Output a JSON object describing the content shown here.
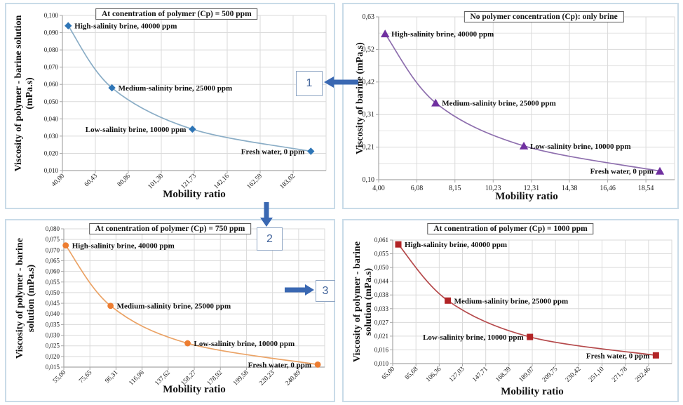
{
  "callouts": [
    {
      "label": "1"
    },
    {
      "label": "2"
    },
    {
      "label": "3"
    }
  ],
  "chart_data": [
    {
      "type": "line",
      "title": "At conentration of polymer (Cp) = 500 ppm",
      "xlabel": "Mobility ratio",
      "ylabel_lines": [
        "Viscosity of polymer - barine  solution",
        "(mPa.s)"
      ],
      "marker": "diamond",
      "marker_color": "#2E75B6",
      "line_color": "#8AADC6",
      "grid": true,
      "x_min": 40,
      "x_plot_max": 203.45,
      "y_min": 0.01,
      "y_max": 0.1,
      "y_tick_labels": [
        "0,100",
        "0,090",
        "0,080",
        "0,070",
        "0,060",
        "0,050",
        "0,040",
        "0,030",
        "0,020",
        "0,010"
      ],
      "x_ticks": [
        {
          "label": "40,00",
          "value": 40.0
        },
        {
          "label": "60,43",
          "value": 60.43
        },
        {
          "label": "80,86",
          "value": 80.86
        },
        {
          "label": "101,30",
          "value": 101.3
        },
        {
          "label": "121,73",
          "value": 121.73
        },
        {
          "label": "142,16",
          "value": 142.16
        },
        {
          "label": "162,59",
          "value": 162.59
        },
        {
          "label": "183,02",
          "value": 183.02
        }
      ],
      "points": [
        {
          "x": 43.6,
          "y": 0.094,
          "label": "High-salinity brine, 40000 ppm",
          "side": "right"
        },
        {
          "x": 70.7,
          "y": 0.058,
          "label": "Medium-salinity brine, 25000 ppm",
          "side": "right"
        },
        {
          "x": 120.6,
          "y": 0.034,
          "label": "Low-salinity brine, 10000 ppm",
          "side": "left"
        },
        {
          "x": 194.0,
          "y": 0.0212,
          "label": "Fresh water, 0 ppm",
          "side": "left"
        }
      ]
    },
    {
      "type": "line",
      "title": "No polymer concentration (Cp): only brine",
      "xlabel": "Mobility ratio",
      "ylabel_lines": [
        "Viscosity of barine (mPa.s)"
      ],
      "marker": "triangle",
      "marker_color": "#7030A0",
      "line_color": "#8E6FAE",
      "grid": true,
      "minor_y_grid": true,
      "x_min": 4.0,
      "x_plot_max": 20.1,
      "y_min": 0.1,
      "y_max": 0.63,
      "y_tick_labels": [
        "0,63",
        "0,52",
        "0,42",
        "0,31",
        "0,21",
        "0,10"
      ],
      "x_ticks": [
        {
          "label": "4,00",
          "value": 4.0
        },
        {
          "label": "6,08",
          "value": 6.08
        },
        {
          "label": "8,15",
          "value": 8.15
        },
        {
          "label": "10,23",
          "value": 10.23
        },
        {
          "label": "12,31",
          "value": 12.31
        },
        {
          "label": "14,38",
          "value": 14.38
        },
        {
          "label": "16,46",
          "value": 16.46
        },
        {
          "label": "18,54",
          "value": 18.54
        }
      ],
      "points": [
        {
          "x": 4.35,
          "y": 0.575,
          "label": "High-salinity brine, 40000 ppm",
          "side": "right"
        },
        {
          "x": 7.1,
          "y": 0.35,
          "label": "Medium-salinity brine, 25000 ppm",
          "side": "right"
        },
        {
          "x": 11.9,
          "y": 0.21,
          "label": "Low-salinity brine, 10000 ppm",
          "side": "right"
        },
        {
          "x": 19.3,
          "y": 0.128,
          "label": "Fresh water, 0 ppm",
          "side": "left"
        }
      ]
    },
    {
      "type": "line",
      "title": "At conentration of polymer (Cp) = 750 ppm",
      "xlabel": "Mobility ratio",
      "ylabel_lines": [
        "Viscosity of polymer - barine",
        "solution (mPa.s)"
      ],
      "marker": "circle",
      "marker_color": "#ED7D31",
      "line_color": "#EBA366",
      "grid": true,
      "x_min": 55,
      "x_plot_max": 261.5,
      "y_min": 0.015,
      "y_max": 0.08,
      "y_tick_labels": [
        "0,080",
        "0,075",
        "0,070",
        "0,065",
        "0,060",
        "0,055",
        "0,050",
        "0,045",
        "0,040",
        "0,035",
        "0,030",
        "0,025",
        "0,020",
        "0,015"
      ],
      "x_ticks": [
        {
          "label": "55,00",
          "value": 55.0
        },
        {
          "label": "75,65",
          "value": 75.65
        },
        {
          "label": "96,31",
          "value": 96.31
        },
        {
          "label": "116,96",
          "value": 116.96
        },
        {
          "label": "137,62",
          "value": 137.62
        },
        {
          "label": "158,27",
          "value": 158.27
        },
        {
          "label": "178,92",
          "value": 178.92
        },
        {
          "label": "199,58",
          "value": 199.58
        },
        {
          "label": "220,23",
          "value": 220.23
        },
        {
          "label": "240,89",
          "value": 240.89
        }
      ],
      "points": [
        {
          "x": 56.5,
          "y": 0.0722,
          "label": "High-salinity brine, 40000 ppm",
          "side": "right"
        },
        {
          "x": 92.0,
          "y": 0.0438,
          "label": "Medium-salinity brine, 25000 ppm",
          "side": "right"
        },
        {
          "x": 153.0,
          "y": 0.0262,
          "label": "Low-salinity brine, 10000 ppm",
          "side": "right"
        },
        {
          "x": 256.0,
          "y": 0.0162,
          "label": "Fresh water, 0 ppm",
          "side": "left"
        }
      ]
    },
    {
      "type": "line",
      "title": "At conentration of polymer (Cp) = 1000 ppm",
      "xlabel": "Mobility ratio",
      "ylabel_lines": [
        "Viscosity of polymer - barine",
        "solution (mPa.s)"
      ],
      "marker": "square",
      "marker_color": "#B22426",
      "line_color": "#B5494B",
      "grid": true,
      "x_min": 65,
      "x_plot_max": 313.1,
      "y_min": 0.01,
      "y_max": 0.061,
      "y_tick_labels": [
        "0,061",
        "0,055",
        "0,050",
        "0,044",
        "0,038",
        "0,033",
        "0,027",
        "0,021",
        "0,016",
        "0,010"
      ],
      "x_ticks": [
        {
          "label": "65,00",
          "value": 65.0
        },
        {
          "label": "85,68",
          "value": 85.68
        },
        {
          "label": "106,36",
          "value": 106.36
        },
        {
          "label": "127,03",
          "value": 127.03
        },
        {
          "label": "147,71",
          "value": 147.71
        },
        {
          "label": "168,39",
          "value": 168.39
        },
        {
          "label": "189,07",
          "value": 189.07
        },
        {
          "label": "209,75",
          "value": 209.75
        },
        {
          "label": "230,42",
          "value": 230.42
        },
        {
          "label": "251,10",
          "value": 251.1
        },
        {
          "label": "271,78",
          "value": 271.78
        },
        {
          "label": "292,46",
          "value": 292.46
        }
      ],
      "points": [
        {
          "x": 70.0,
          "y": 0.0592,
          "label": "High-salinity brine, 40000 ppm",
          "side": "right"
        },
        {
          "x": 114.0,
          "y": 0.036,
          "label": "Medium-salinity brine, 25000 ppm",
          "side": "right"
        },
        {
          "x": 187.0,
          "y": 0.021,
          "label": "Low-salinity brine, 10000 ppm",
          "side": "left"
        },
        {
          "x": 299.0,
          "y": 0.0134,
          "label": "Fresh water, 0 ppm",
          "side": "left"
        }
      ]
    }
  ]
}
